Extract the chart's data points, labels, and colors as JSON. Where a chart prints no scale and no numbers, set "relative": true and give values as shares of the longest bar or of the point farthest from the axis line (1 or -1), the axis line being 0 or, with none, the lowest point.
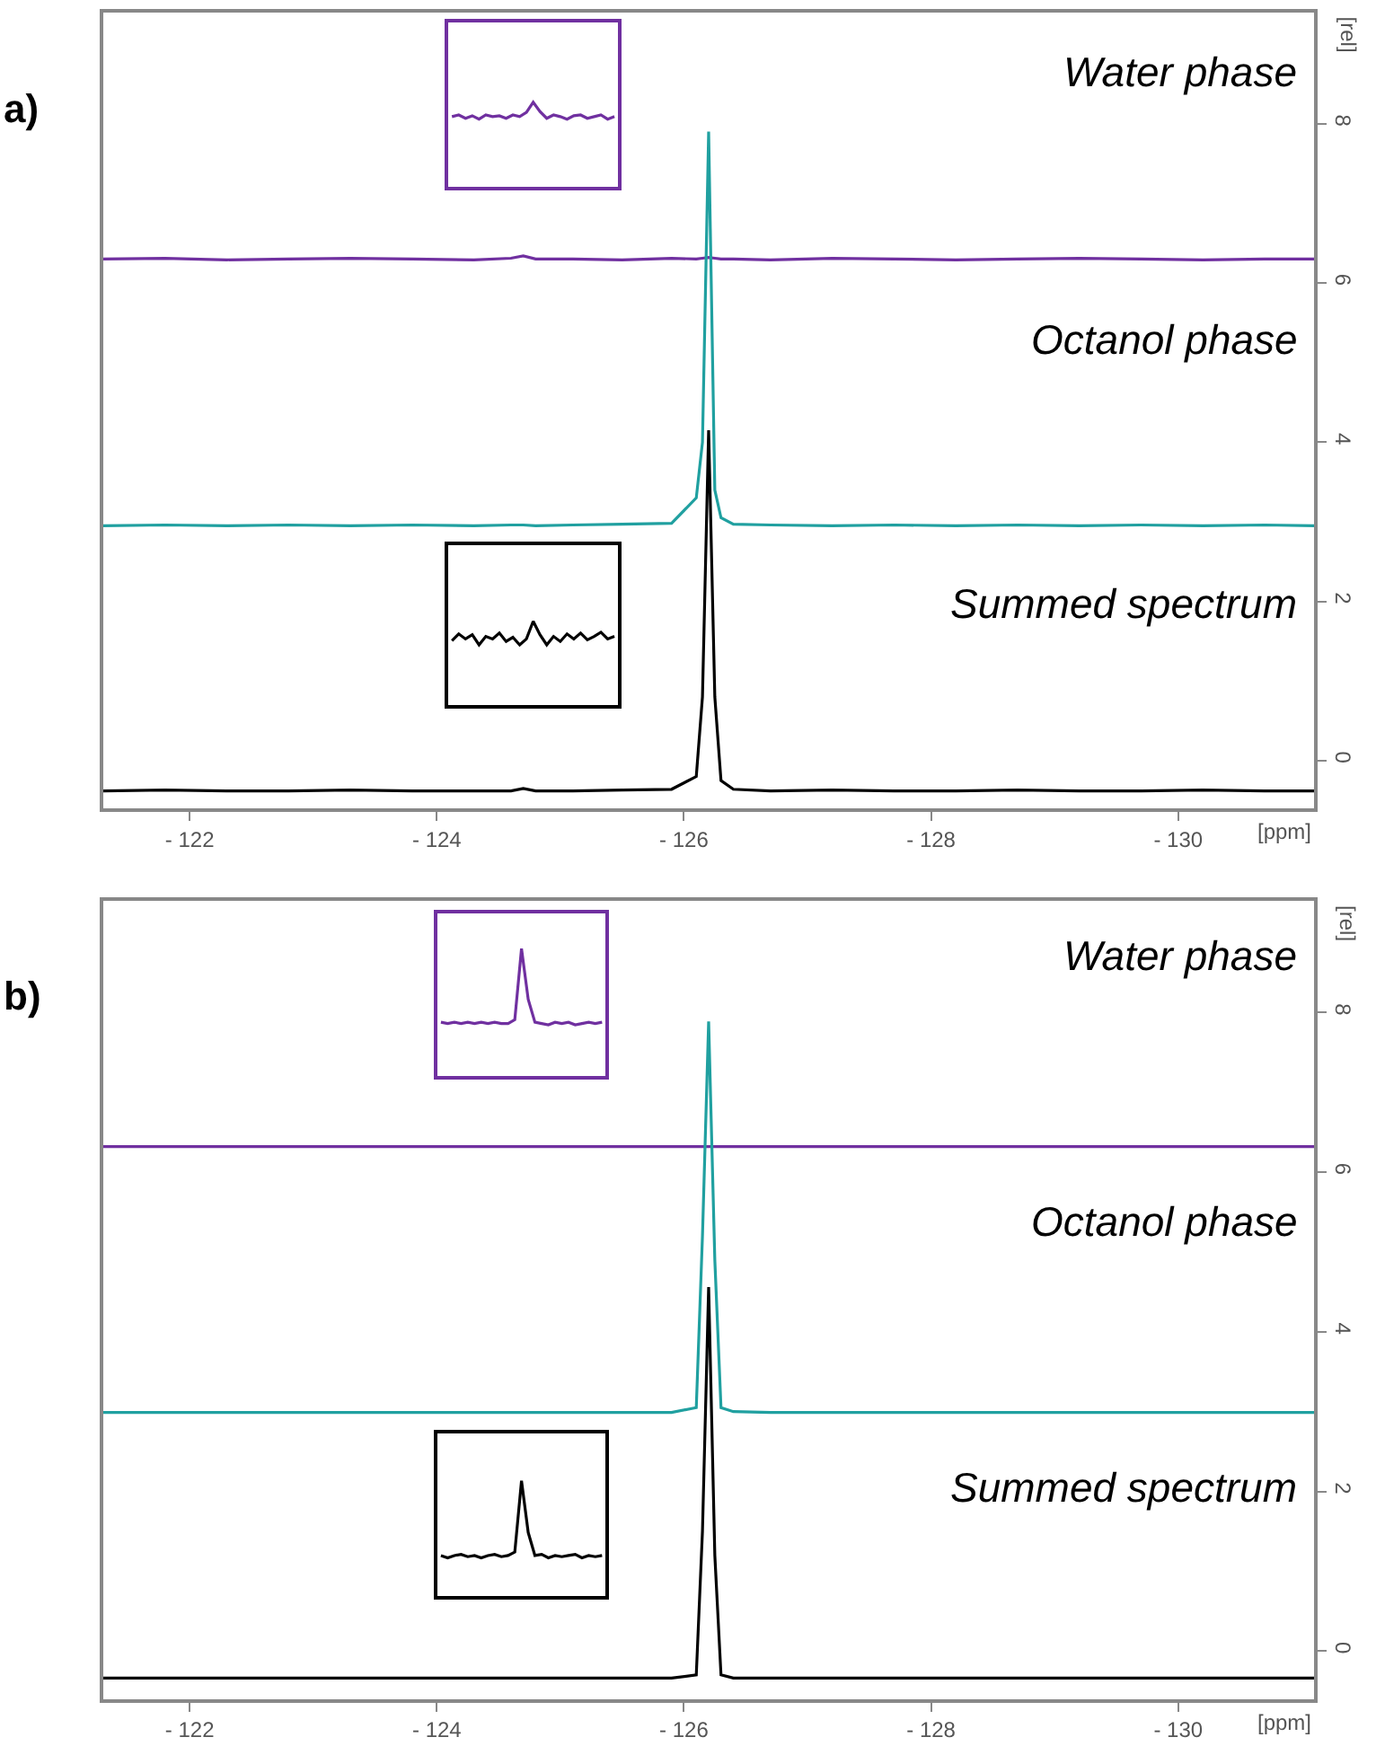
{
  "chart_data": [
    {
      "type": "line",
      "title": "a)",
      "xlabel": "[ppm]",
      "ylabel": "[rel]",
      "annotations": [
        "Water phase",
        "Octanol phase",
        "Summed spectrum"
      ],
      "x": [
        -121.3,
        -121.8,
        -122.3,
        -122.8,
        -123.3,
        -123.8,
        -124.3,
        -124.6,
        -124.7,
        -124.8,
        -125.1,
        -125.5,
        -125.9,
        -126.1,
        -126.15,
        -126.2,
        -126.25,
        -126.3,
        -126.4,
        -126.7,
        -127.2,
        -127.7,
        -128.2,
        -128.7,
        -129.2,
        -129.7,
        -130.2,
        -130.7,
        -131.1
      ],
      "series": [
        {
          "color": "#7030a0",
          "values": [
            6.3,
            6.31,
            6.29,
            6.3,
            6.31,
            6.3,
            6.29,
            6.31,
            6.34,
            6.3,
            6.3,
            6.29,
            6.31,
            6.3,
            6.31,
            6.32,
            6.31,
            6.3,
            6.3,
            6.29,
            6.31,
            6.3,
            6.29,
            6.3,
            6.31,
            6.3,
            6.29,
            6.3,
            6.3
          ]
        },
        {
          "color": "#20a0a0",
          "values": [
            2.95,
            2.96,
            2.95,
            2.96,
            2.95,
            2.96,
            2.95,
            2.96,
            2.96,
            2.95,
            2.96,
            2.97,
            2.98,
            3.3,
            4.0,
            7.9,
            3.4,
            3.05,
            2.97,
            2.96,
            2.95,
            2.96,
            2.95,
            2.96,
            2.95,
            2.96,
            2.95,
            2.96,
            2.95
          ]
        },
        {
          "color": "#000000",
          "values": [
            -0.38,
            -0.37,
            -0.38,
            -0.38,
            -0.37,
            -0.38,
            -0.38,
            -0.38,
            -0.35,
            -0.38,
            -0.38,
            -0.37,
            -0.36,
            -0.2,
            0.8,
            4.15,
            0.8,
            -0.25,
            -0.36,
            -0.38,
            -0.37,
            -0.38,
            -0.38,
            -0.37,
            -0.38,
            -0.38,
            -0.37,
            -0.38,
            -0.38
          ]
        }
      ],
      "xlim": [
        -121.3,
        -131.1
      ],
      "xticks": [
        {
          "value": -122,
          "label": "- 122"
        },
        {
          "value": -124,
          "label": "- 124"
        },
        {
          "value": -126,
          "label": "- 126"
        },
        {
          "value": -128,
          "label": "- 128"
        },
        {
          "value": -130,
          "label": "- 130"
        }
      ],
      "ylim": [
        -0.6,
        9.4
      ],
      "yticks": [
        0,
        2,
        4,
        6,
        8
      ]
    },
    {
      "type": "line",
      "relative": true,
      "categories": [
        null,
        null,
        null,
        null,
        null,
        null,
        null,
        null,
        null,
        null,
        null,
        null,
        null,
        null,
        null,
        null,
        null,
        null,
        null,
        null,
        null,
        null,
        null,
        null,
        null
      ],
      "series": [
        {
          "color": "#7030a0",
          "values": [
            0.83,
            0.85,
            0.81,
            0.84,
            0.8,
            0.85,
            0.83,
            0.84,
            0.81,
            0.85,
            0.83,
            0.88,
            1,
            0.89,
            0.81,
            0.85,
            0.83,
            0.8,
            0.84,
            0.85,
            0.81,
            0.83,
            0.85,
            0.8,
            0.83
          ]
        }
      ]
    },
    {
      "type": "line",
      "relative": true,
      "categories": [
        null,
        null,
        null,
        null,
        null,
        null,
        null,
        null,
        null,
        null,
        null,
        null,
        null,
        null,
        null,
        null,
        null,
        null,
        null,
        null,
        null,
        null,
        null,
        null,
        null
      ],
      "series": [
        {
          "color": "#000000",
          "values": [
            0.77,
            0.85,
            0.79,
            0.84,
            0.72,
            0.82,
            0.79,
            0.86,
            0.76,
            0.81,
            0.72,
            0.79,
            1,
            0.84,
            0.72,
            0.82,
            0.76,
            0.85,
            0.79,
            0.86,
            0.78,
            0.82,
            0.87,
            0.79,
            0.82
          ]
        }
      ]
    },
    {
      "type": "line",
      "title": "b)",
      "xlabel": "[ppm]",
      "ylabel": "[rel]",
      "annotations": [
        "Water phase",
        "Octanol phase",
        "Summed spectrum"
      ],
      "x": [
        -121.3,
        -121.8,
        -122.3,
        -122.8,
        -123.3,
        -123.8,
        -124.3,
        -124.6,
        -124.7,
        -124.8,
        -125.1,
        -125.5,
        -125.9,
        -126.1,
        -126.15,
        -126.2,
        -126.25,
        -126.3,
        -126.4,
        -126.7,
        -127.2,
        -127.7,
        -128.2,
        -128.7,
        -129.2,
        -129.7,
        -130.2,
        -130.7,
        -131.1
      ],
      "series": [
        {
          "color": "#7030a0",
          "values": [
            6.32,
            6.32,
            6.32,
            6.32,
            6.32,
            6.32,
            6.32,
            6.32,
            6.32,
            6.32,
            6.32,
            6.32,
            6.32,
            6.32,
            6.32,
            6.32,
            6.32,
            6.32,
            6.32,
            6.32,
            6.32,
            6.32,
            6.32,
            6.32,
            6.32,
            6.32,
            6.32,
            6.32,
            6.32
          ]
        },
        {
          "color": "#20a0a0",
          "values": [
            2.99,
            2.99,
            2.99,
            2.99,
            2.99,
            2.99,
            2.99,
            2.99,
            2.99,
            2.99,
            2.99,
            2.99,
            2.99,
            3.05,
            5.2,
            7.89,
            4.9,
            3.05,
            3.0,
            2.99,
            2.99,
            2.99,
            2.99,
            2.99,
            2.99,
            2.99,
            2.99,
            2.99,
            2.99
          ]
        },
        {
          "color": "#000000",
          "values": [
            -0.34,
            -0.34,
            -0.34,
            -0.34,
            -0.34,
            -0.34,
            -0.34,
            -0.34,
            -0.34,
            -0.34,
            -0.34,
            -0.34,
            -0.34,
            -0.3,
            1.5,
            4.56,
            1.2,
            -0.3,
            -0.34,
            -0.34,
            -0.34,
            -0.34,
            -0.34,
            -0.34,
            -0.34,
            -0.34,
            -0.34,
            -0.34,
            -0.34
          ]
        }
      ],
      "xlim": [
        -121.3,
        -131.1
      ],
      "xticks": [
        {
          "value": -122,
          "label": "- 122"
        },
        {
          "value": -124,
          "label": "- 124"
        },
        {
          "value": -126,
          "label": "- 126"
        },
        {
          "value": -128,
          "label": "- 128"
        },
        {
          "value": -130,
          "label": "- 130"
        }
      ],
      "ylim": [
        -0.6,
        9.4
      ],
      "yticks": [
        0,
        2,
        4,
        6,
        8
      ]
    },
    {
      "type": "line",
      "relative": true,
      "categories": [
        null,
        null,
        null,
        null,
        null,
        null,
        null,
        null,
        null,
        null,
        null,
        null,
        null,
        null,
        null,
        null,
        null,
        null,
        null,
        null,
        null,
        null,
        null,
        null,
        null
      ],
      "series": [
        {
          "color": "#7030a0",
          "values": [
            0.42,
            0.41,
            0.42,
            0.41,
            0.42,
            0.41,
            0.42,
            0.41,
            0.42,
            0.41,
            0.41,
            0.44,
            1,
            0.6,
            0.42,
            0.41,
            0.4,
            0.42,
            0.41,
            0.42,
            0.4,
            0.41,
            0.42,
            0.41,
            0.42
          ]
        }
      ]
    },
    {
      "type": "line",
      "relative": true,
      "categories": [
        null,
        null,
        null,
        null,
        null,
        null,
        null,
        null,
        null,
        null,
        null,
        null,
        null,
        null,
        null,
        null,
        null,
        null,
        null,
        null,
        null,
        null,
        null,
        null,
        null
      ],
      "series": [
        {
          "color": "#000000",
          "values": [
            0.35,
            0.33,
            0.35,
            0.36,
            0.34,
            0.35,
            0.33,
            0.35,
            0.36,
            0.34,
            0.35,
            0.38,
            1,
            0.55,
            0.35,
            0.36,
            0.33,
            0.35,
            0.34,
            0.35,
            0.36,
            0.33,
            0.35,
            0.34,
            0.35
          ]
        }
      ]
    }
  ]
}
